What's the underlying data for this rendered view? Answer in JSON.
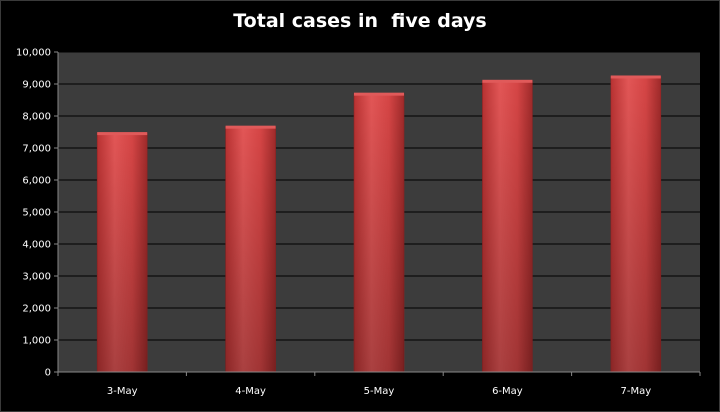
{
  "chart_data": {
    "type": "bar",
    "title": "Total cases in  five days",
    "xlabel": "",
    "ylabel": "",
    "categories": [
      "3-May",
      "4-May",
      "5-May",
      "6-May",
      "7-May"
    ],
    "values": [
      7466,
      7667,
      8698,
      9100,
      9235
    ],
    "ylim": [
      0,
      10000
    ],
    "yticks": [
      "0",
      "1,000",
      "2,000",
      "3,000",
      "4,000",
      "5,000",
      "6,000",
      "7,000",
      "8,000",
      "9,000",
      "10,000"
    ],
    "grid": true,
    "legend": "none"
  },
  "colors": {
    "background": "#000000",
    "plot_area": "#3c3c3c",
    "gridline": "#000000",
    "bar": "#d13f3f",
    "bar_highlight": "#e05a5a",
    "bar_shadow": "#8f2424",
    "text": "#ffffff"
  }
}
